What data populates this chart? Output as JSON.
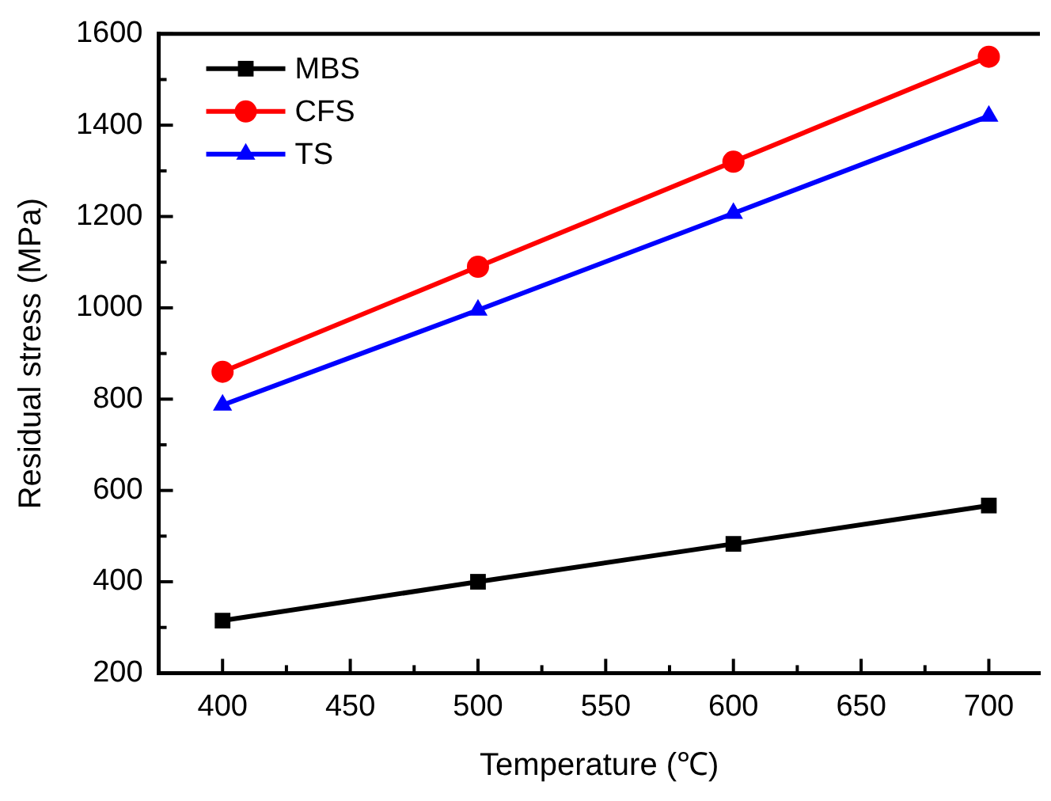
{
  "chart_data": {
    "type": "line",
    "xlabel": "Temperature (℃)",
    "ylabel": "Residual stress (MPa)",
    "x": [
      400,
      500,
      600,
      700
    ],
    "series": [
      {
        "name": "MBS",
        "color": "#000000",
        "marker": "square",
        "values": [
          315,
          400,
          483,
          567
        ]
      },
      {
        "name": "CFS",
        "color": "#ff0000",
        "marker": "circle",
        "values": [
          860,
          1090,
          1320,
          1550
        ]
      },
      {
        "name": "TS",
        "color": "#0000ff",
        "marker": "triangle",
        "values": [
          787,
          995,
          1207,
          1420
        ]
      }
    ],
    "xlim": [
      375,
      720
    ],
    "ylim": [
      200,
      1600
    ],
    "xticks": [
      400,
      {
        "value": 425,
        "label": null
      },
      450,
      {
        "value": 475,
        "label": null
      },
      500,
      {
        "value": 525,
        "label": null
      },
      550,
      {
        "value": 575,
        "label": null
      },
      600,
      {
        "value": 625,
        "label": null
      },
      650,
      {
        "value": 675,
        "label": null
      },
      700
    ],
    "yticks": [
      200,
      {
        "value": 300,
        "label": null
      },
      400,
      {
        "value": 500,
        "label": null
      },
      600,
      {
        "value": 700,
        "label": null
      },
      800,
      {
        "value": 900,
        "label": null
      },
      1000,
      {
        "value": 1100,
        "label": null
      },
      1200,
      {
        "value": 1300,
        "label": null
      },
      1400,
      {
        "value": 1500,
        "label": null
      },
      1600
    ],
    "grid": false,
    "legend": "top left",
    "line_style": "solid"
  }
}
